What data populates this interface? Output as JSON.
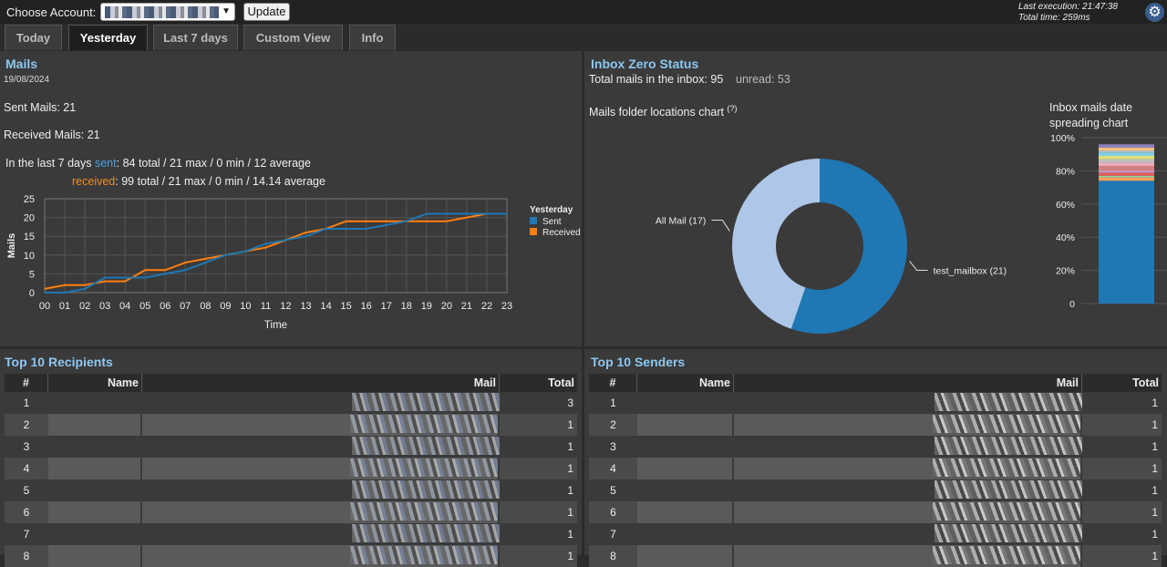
{
  "header": {
    "account_label": "Choose Account:",
    "update_label": "Update",
    "last_execution": "Last execution: 21:47:38",
    "total_time": "Total time: 259ms"
  },
  "tabs": [
    {
      "label": "Today",
      "active": false
    },
    {
      "label": "Yesterday",
      "active": true
    },
    {
      "label": "Last 7 days",
      "active": false
    },
    {
      "label": "Custom View",
      "active": false
    },
    {
      "label": "Info",
      "active": false
    }
  ],
  "mails": {
    "title": "Mails",
    "date": "19/08/2024",
    "sent_line": "Sent Mails: 21",
    "received_line": "Received Mails: 21",
    "last7_prefix": "In the last 7 days ",
    "sent_word": "sent",
    "sent_stats": ": 84 total / 21 max / 0 min / 12 average",
    "received_word": "received",
    "received_stats": ": 99 total / 21 max / 0 min / 14.14 average"
  },
  "inbox": {
    "title": "Inbox Zero Status",
    "total_label": "Total mails in the inbox: 95",
    "unread_label": "unread: 53",
    "folder_chart_label": "Mails folder locations chart",
    "folder_chart_help": "(?)",
    "date_chart_label_1": "Inbox mails date",
    "date_chart_label_2": "spreading chart"
  },
  "recipients": {
    "title": "Top 10 Recipients",
    "columns": [
      "#",
      "Name",
      "Mail",
      "Total"
    ],
    "rows": [
      {
        "n": "1",
        "total": "3"
      },
      {
        "n": "2",
        "total": "1"
      },
      {
        "n": "3",
        "total": "1"
      },
      {
        "n": "4",
        "total": "1"
      },
      {
        "n": "5",
        "total": "1"
      },
      {
        "n": "6",
        "total": "1"
      },
      {
        "n": "7",
        "total": "1"
      },
      {
        "n": "8",
        "total": "1"
      }
    ]
  },
  "senders": {
    "title": "Top 10 Senders",
    "columns": [
      "#",
      "Name",
      "Mail",
      "Total"
    ],
    "rows": [
      {
        "n": "1",
        "total": "1"
      },
      {
        "n": "2",
        "total": "1"
      },
      {
        "n": "3",
        "total": "1"
      },
      {
        "n": "4",
        "total": "1"
      },
      {
        "n": "5",
        "total": "1"
      },
      {
        "n": "6",
        "total": "1"
      },
      {
        "n": "7",
        "total": "1"
      },
      {
        "n": "8",
        "total": "1"
      }
    ]
  },
  "colors": {
    "sent": "#1f77b4",
    "received": "#ff7f0e",
    "title": "#8cc8f0",
    "donut_main": "#1f77b4",
    "donut_secondary": "#aec7e8"
  },
  "icons": {
    "settings": "gear-icon",
    "sync": "sync-icon",
    "dropdown": "chevron-down-icon"
  },
  "chart_data": [
    {
      "type": "line",
      "xlabel": "Time",
      "ylabel": "Mails",
      "ylim": [
        0,
        25
      ],
      "yticks": [
        "0",
        "5",
        "10",
        "15",
        "20",
        "25"
      ],
      "categories": [
        "00",
        "01",
        "02",
        "03",
        "04",
        "05",
        "06",
        "07",
        "08",
        "09",
        "10",
        "11",
        "12",
        "13",
        "14",
        "15",
        "16",
        "17",
        "18",
        "19",
        "20",
        "21",
        "22",
        "23"
      ],
      "legend_title": "Yesterday",
      "legend_position": "top-right",
      "grid": true,
      "series": [
        {
          "name": "Sent",
          "values": [
            0,
            0,
            1,
            4,
            4,
            4,
            5,
            6,
            8,
            10,
            11,
            13,
            14,
            15,
            17,
            17,
            17,
            18,
            19,
            21,
            21,
            21,
            21,
            21
          ]
        },
        {
          "name": "Received",
          "values": [
            1,
            2,
            2,
            3,
            3,
            6,
            6,
            8,
            9,
            10,
            11,
            12,
            14,
            16,
            17,
            19,
            19,
            19,
            19,
            19,
            19,
            20,
            21,
            21
          ]
        }
      ]
    },
    {
      "type": "pie",
      "donut": true,
      "labels": [
        "test_mailbox (21)",
        "All Mail (17)"
      ],
      "values": [
        21,
        17
      ]
    },
    {
      "type": "bar",
      "stacked": true,
      "yticks": [
        "0",
        "20%",
        "40%",
        "60%",
        "80%",
        "100%"
      ],
      "ylim": [
        0,
        100
      ],
      "values": [
        74,
        2,
        1,
        2,
        1,
        3,
        2,
        2,
        2,
        2,
        1,
        2,
        2
      ]
    }
  ]
}
